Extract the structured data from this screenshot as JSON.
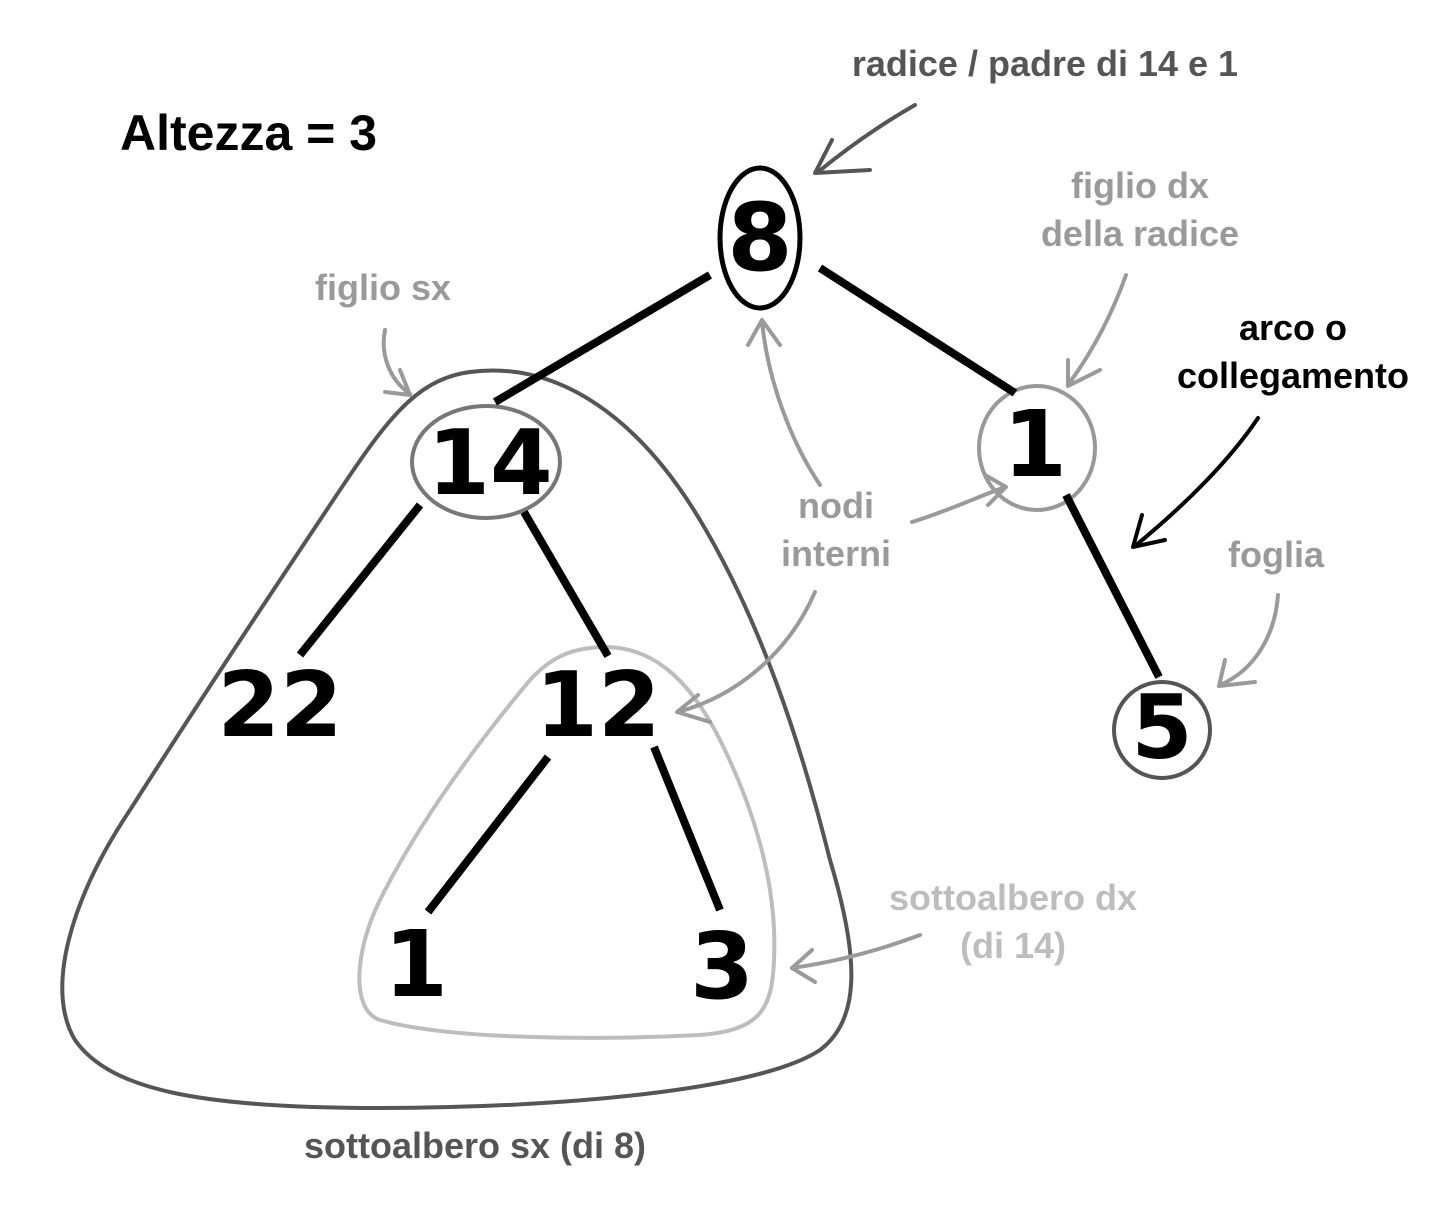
{
  "title": "Altezza = 3",
  "nodes": {
    "root": "8",
    "left_child": "14",
    "right_child": "1",
    "n22": "22",
    "n12": "12",
    "n1_bottom": "1",
    "n3": "3",
    "n5": "5"
  },
  "annotations": {
    "root_label": "radice / padre di 14 e 1",
    "right_child_line1": "figlio dx",
    "right_child_line2": "della radice",
    "left_child_label": "figlio sx",
    "edge_line1": "arco o",
    "edge_line2": "collegamento",
    "internal_line1": "nodi",
    "internal_line2": "interni",
    "leaf_label": "foglia",
    "right_subtree_line1": "sottoalbero dx",
    "right_subtree_line2": "(di 14)",
    "left_subtree_label": "sottoalbero sx (di 8)"
  },
  "colors": {
    "ink": "#000000",
    "dark_gray": "#555555",
    "mid_gray": "#9a9a9a",
    "light_gray": "#bdbdbd"
  }
}
